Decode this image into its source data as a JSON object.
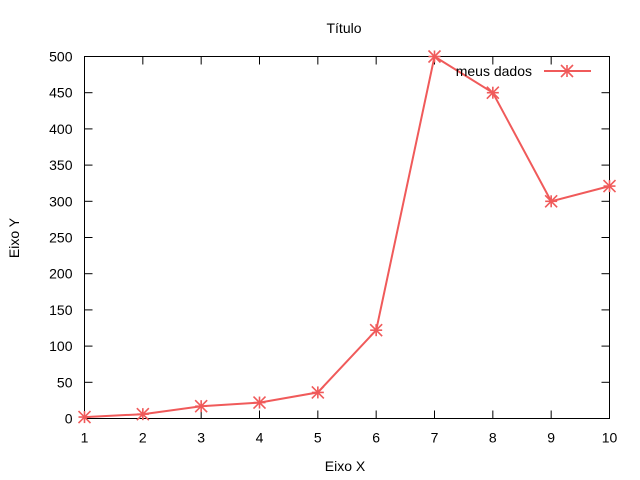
{
  "chart_data": {
    "type": "line",
    "title": "Título",
    "xlabel": "Eixo X",
    "ylabel": "Eixo Y",
    "xlim": [
      1,
      10
    ],
    "ylim": [
      0,
      500
    ],
    "x_ticks": [
      1,
      2,
      3,
      4,
      5,
      6,
      7,
      8,
      9,
      10
    ],
    "y_ticks": [
      0,
      50,
      100,
      150,
      200,
      250,
      300,
      350,
      400,
      450,
      500
    ],
    "grid": false,
    "legend_position": "top-right",
    "series": [
      {
        "name": "meus dados",
        "color": "#f05a5a",
        "marker": "asterisk",
        "x": [
          1,
          2,
          3,
          4,
          5,
          6,
          7,
          8,
          9,
          10
        ],
        "y": [
          2,
          6,
          17,
          22,
          36,
          122,
          500,
          450,
          300,
          321
        ]
      }
    ]
  }
}
